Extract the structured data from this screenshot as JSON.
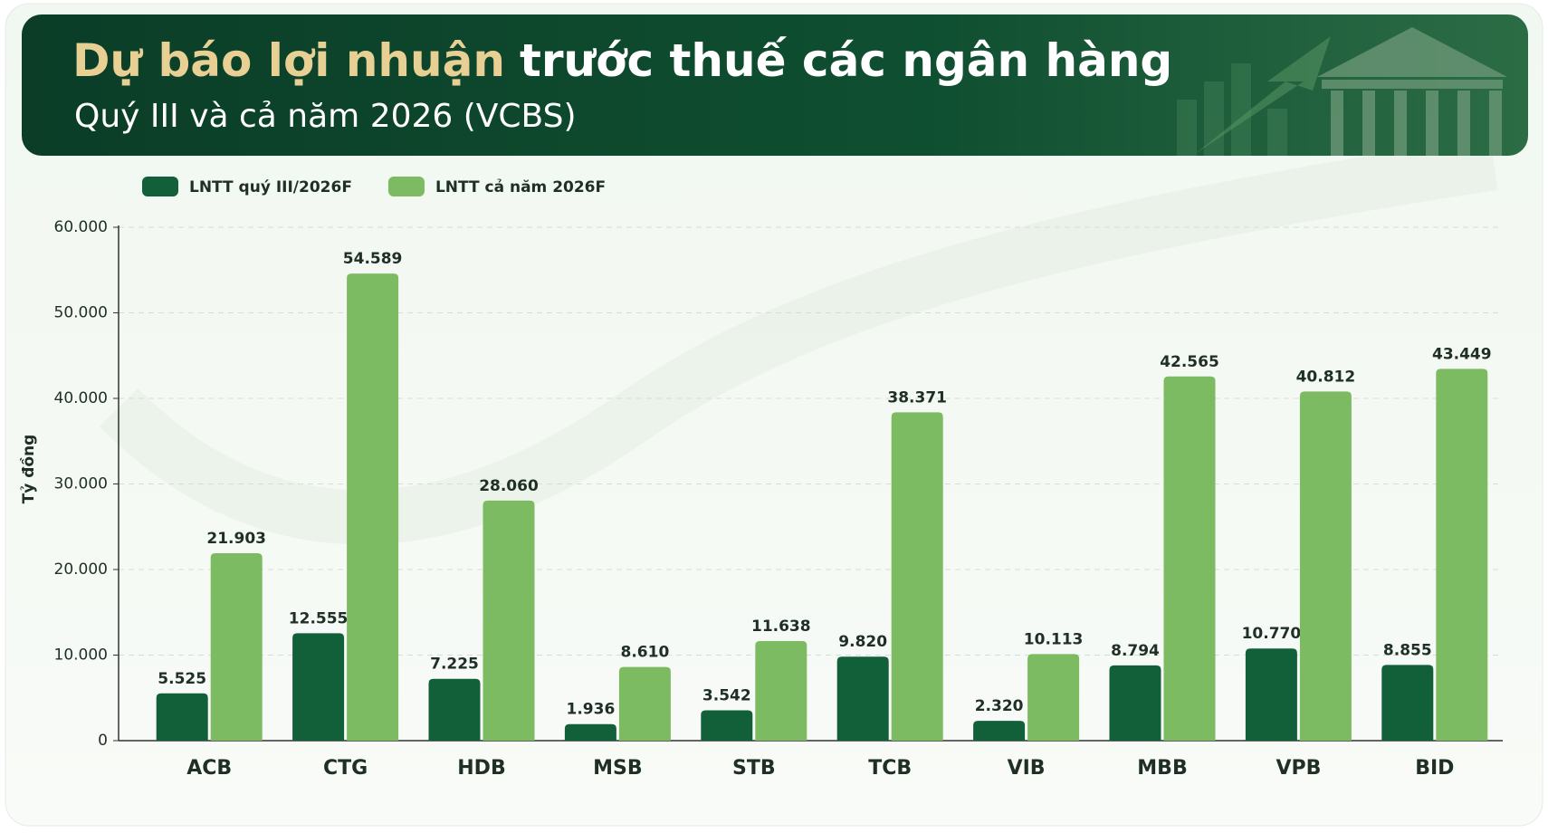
{
  "chart_data": {
    "type": "bar",
    "title_lead": "Dự báo lợi nhuận",
    "title": "trước thuế các ngân hàng",
    "subtitle": "Quý III và cả năm 2026 (VCBS)",
    "y_label": "Tỷ đồng",
    "categories": [
      "ACB",
      "CTG",
      "HDB",
      "MSB",
      "STB",
      "TCB",
      "VIB",
      "MBB",
      "VPB",
      "BID"
    ],
    "series": [
      {
        "name": "LNTT quý III/2026F",
        "color": "#12603a",
        "values": [
          5525,
          12555,
          7225,
          1936,
          3542,
          9820,
          2320,
          8794,
          10770,
          8855
        ],
        "value_labels": [
          "5.525",
          "12.555",
          "7.225",
          "1.936",
          "3.542",
          "9.820",
          "2.320",
          "8.794",
          "10.770",
          "8.855"
        ]
      },
      {
        "name": "LNTT cả năm 2026F",
        "color": "#7dbb62",
        "values": [
          21903,
          54589,
          28060,
          8610,
          11638,
          38371,
          10113,
          42565,
          40812,
          43449
        ],
        "value_labels": [
          "21.903",
          "54.589",
          "28.060",
          "8.610",
          "11.638",
          "38.371",
          "10.113",
          "42.565",
          "40.812",
          "43.449"
        ]
      }
    ],
    "ylim": [
      0,
      60000
    ],
    "yticks": [
      0,
      {
        "value": 10000,
        "label": "10.000"
      },
      {
        "value": 20000,
        "label": "20.000"
      },
      {
        "value": 30000,
        "label": "30.000"
      },
      {
        "value": 40000,
        "label": "40.000"
      },
      {
        "value": 50000,
        "label": "50.000"
      },
      {
        "value": 60000,
        "label": "60.000"
      }
    ],
    "grid": true
  }
}
